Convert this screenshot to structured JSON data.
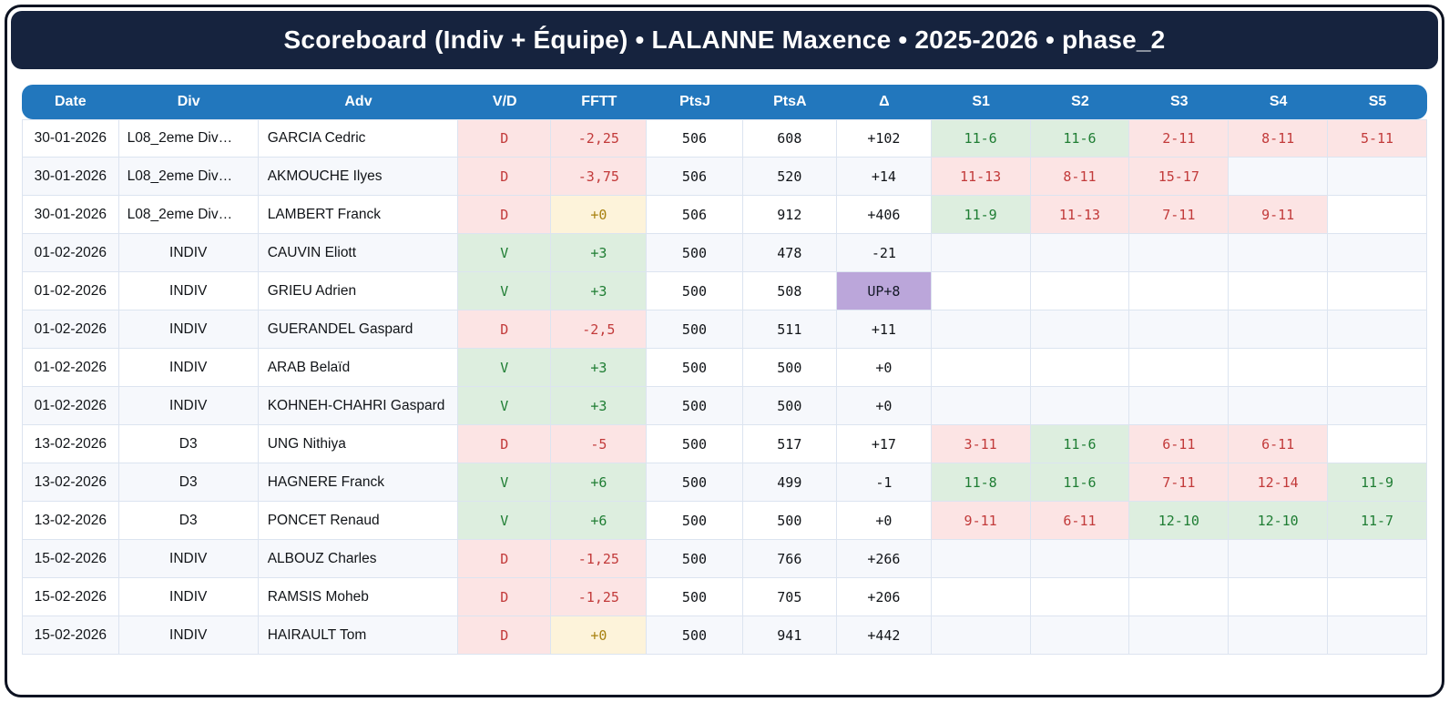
{
  "title": "Scoreboard (Indiv + Équipe) • LALANNE Maxence • 2025-2026 • phase_2",
  "colors": {
    "frame_border": "#0d1322",
    "banner_bg": "#16233e",
    "header_bg": "#2277bd",
    "win_bg": "#ddeedf",
    "win_text": "#1e7d33",
    "loss_bg": "#fce4e4",
    "loss_text": "#c23a3a",
    "zero_bg": "#fdf3da",
    "zero_text": "#a8810f",
    "up_bg": "#bba6da",
    "alt_row_bg": "#f6f8fc",
    "grid_line": "#dce4f0"
  },
  "table": {
    "columns": [
      "Date",
      "Div",
      "Adv",
      "V/D",
      "FFTT",
      "PtsJ",
      "PtsA",
      "Δ",
      "S1",
      "S2",
      "S3",
      "S4",
      "S5"
    ],
    "rows": [
      {
        "date": "30-01-2026",
        "div": "L08_2eme Div…",
        "adv": "GARCIA Cedric",
        "vd": "D",
        "fftt": "-2,25",
        "fftt_kind": "loss",
        "ptsj": "506",
        "ptsa": "608",
        "delta": "+102",
        "delta_kind": "plain",
        "sets": [
          {
            "t": "11-6",
            "k": "w"
          },
          {
            "t": "11-6",
            "k": "w"
          },
          {
            "t": "2-11",
            "k": "l"
          },
          {
            "t": "8-11",
            "k": "l"
          },
          {
            "t": "5-11",
            "k": "l"
          }
        ]
      },
      {
        "date": "30-01-2026",
        "div": "L08_2eme Div…",
        "adv": "AKMOUCHE Ilyes",
        "vd": "D",
        "fftt": "-3,75",
        "fftt_kind": "loss",
        "ptsj": "506",
        "ptsa": "520",
        "delta": "+14",
        "delta_kind": "plain",
        "sets": [
          {
            "t": "11-13",
            "k": "l"
          },
          {
            "t": "8-11",
            "k": "l"
          },
          {
            "t": "15-17",
            "k": "l"
          },
          {
            "t": "",
            "k": ""
          },
          {
            "t": "",
            "k": ""
          }
        ]
      },
      {
        "date": "30-01-2026",
        "div": "L08_2eme Div…",
        "adv": "LAMBERT Franck",
        "vd": "D",
        "fftt": "+0",
        "fftt_kind": "zero",
        "ptsj": "506",
        "ptsa": "912",
        "delta": "+406",
        "delta_kind": "plain",
        "sets": [
          {
            "t": "11-9",
            "k": "w"
          },
          {
            "t": "11-13",
            "k": "l"
          },
          {
            "t": "7-11",
            "k": "l"
          },
          {
            "t": "9-11",
            "k": "l"
          },
          {
            "t": "",
            "k": ""
          }
        ]
      },
      {
        "date": "01-02-2026",
        "div": "INDIV",
        "adv": "CAUVIN Eliott",
        "vd": "V",
        "fftt": "+3",
        "fftt_kind": "win",
        "ptsj": "500",
        "ptsa": "478",
        "delta": "-21",
        "delta_kind": "plain",
        "sets": [
          {
            "t": "",
            "k": ""
          },
          {
            "t": "",
            "k": ""
          },
          {
            "t": "",
            "k": ""
          },
          {
            "t": "",
            "k": ""
          },
          {
            "t": "",
            "k": ""
          }
        ]
      },
      {
        "date": "01-02-2026",
        "div": "INDIV",
        "adv": "GRIEU Adrien",
        "vd": "V",
        "fftt": "+3",
        "fftt_kind": "win",
        "ptsj": "500",
        "ptsa": "508",
        "delta": "UP+8",
        "delta_kind": "up",
        "sets": [
          {
            "t": "",
            "k": ""
          },
          {
            "t": "",
            "k": ""
          },
          {
            "t": "",
            "k": ""
          },
          {
            "t": "",
            "k": ""
          },
          {
            "t": "",
            "k": ""
          }
        ]
      },
      {
        "date": "01-02-2026",
        "div": "INDIV",
        "adv": "GUERANDEL Gaspard",
        "vd": "D",
        "fftt": "-2,5",
        "fftt_kind": "loss",
        "ptsj": "500",
        "ptsa": "511",
        "delta": "+11",
        "delta_kind": "plain",
        "sets": [
          {
            "t": "",
            "k": ""
          },
          {
            "t": "",
            "k": ""
          },
          {
            "t": "",
            "k": ""
          },
          {
            "t": "",
            "k": ""
          },
          {
            "t": "",
            "k": ""
          }
        ]
      },
      {
        "date": "01-02-2026",
        "div": "INDIV",
        "adv": "ARAB Belaïd",
        "vd": "V",
        "fftt": "+3",
        "fftt_kind": "win",
        "ptsj": "500",
        "ptsa": "500",
        "delta": "+0",
        "delta_kind": "plain",
        "sets": [
          {
            "t": "",
            "k": ""
          },
          {
            "t": "",
            "k": ""
          },
          {
            "t": "",
            "k": ""
          },
          {
            "t": "",
            "k": ""
          },
          {
            "t": "",
            "k": ""
          }
        ]
      },
      {
        "date": "01-02-2026",
        "div": "INDIV",
        "adv": "KOHNEH-CHAHRI Gaspard",
        "vd": "V",
        "fftt": "+3",
        "fftt_kind": "win",
        "ptsj": "500",
        "ptsa": "500",
        "delta": "+0",
        "delta_kind": "plain",
        "sets": [
          {
            "t": "",
            "k": ""
          },
          {
            "t": "",
            "k": ""
          },
          {
            "t": "",
            "k": ""
          },
          {
            "t": "",
            "k": ""
          },
          {
            "t": "",
            "k": ""
          }
        ]
      },
      {
        "date": "13-02-2026",
        "div": "D3",
        "adv": "UNG Nithiya",
        "vd": "D",
        "fftt": "-5",
        "fftt_kind": "loss",
        "ptsj": "500",
        "ptsa": "517",
        "delta": "+17",
        "delta_kind": "plain",
        "sets": [
          {
            "t": "3-11",
            "k": "l"
          },
          {
            "t": "11-6",
            "k": "w"
          },
          {
            "t": "6-11",
            "k": "l"
          },
          {
            "t": "6-11",
            "k": "l"
          },
          {
            "t": "",
            "k": ""
          }
        ]
      },
      {
        "date": "13-02-2026",
        "div": "D3",
        "adv": "HAGNERE Franck",
        "vd": "V",
        "fftt": "+6",
        "fftt_kind": "win",
        "ptsj": "500",
        "ptsa": "499",
        "delta": "-1",
        "delta_kind": "plain",
        "sets": [
          {
            "t": "11-8",
            "k": "w"
          },
          {
            "t": "11-6",
            "k": "w"
          },
          {
            "t": "7-11",
            "k": "l"
          },
          {
            "t": "12-14",
            "k": "l"
          },
          {
            "t": "11-9",
            "k": "w"
          }
        ]
      },
      {
        "date": "13-02-2026",
        "div": "D3",
        "adv": "PONCET Renaud",
        "vd": "V",
        "fftt": "+6",
        "fftt_kind": "win",
        "ptsj": "500",
        "ptsa": "500",
        "delta": "+0",
        "delta_kind": "plain",
        "sets": [
          {
            "t": "9-11",
            "k": "l"
          },
          {
            "t": "6-11",
            "k": "l"
          },
          {
            "t": "12-10",
            "k": "w"
          },
          {
            "t": "12-10",
            "k": "w"
          },
          {
            "t": "11-7",
            "k": "w"
          }
        ]
      },
      {
        "date": "15-02-2026",
        "div": "INDIV",
        "adv": "ALBOUZ Charles",
        "vd": "D",
        "fftt": "-1,25",
        "fftt_kind": "loss",
        "ptsj": "500",
        "ptsa": "766",
        "delta": "+266",
        "delta_kind": "plain",
        "sets": [
          {
            "t": "",
            "k": ""
          },
          {
            "t": "",
            "k": ""
          },
          {
            "t": "",
            "k": ""
          },
          {
            "t": "",
            "k": ""
          },
          {
            "t": "",
            "k": ""
          }
        ]
      },
      {
        "date": "15-02-2026",
        "div": "INDIV",
        "adv": "RAMSIS Moheb",
        "vd": "D",
        "fftt": "-1,25",
        "fftt_kind": "loss",
        "ptsj": "500",
        "ptsa": "705",
        "delta": "+206",
        "delta_kind": "plain",
        "sets": [
          {
            "t": "",
            "k": ""
          },
          {
            "t": "",
            "k": ""
          },
          {
            "t": "",
            "k": ""
          },
          {
            "t": "",
            "k": ""
          },
          {
            "t": "",
            "k": ""
          }
        ]
      },
      {
        "date": "15-02-2026",
        "div": "INDIV",
        "adv": "HAIRAULT Tom",
        "vd": "D",
        "fftt": "+0",
        "fftt_kind": "zero",
        "ptsj": "500",
        "ptsa": "941",
        "delta": "+442",
        "delta_kind": "plain",
        "sets": [
          {
            "t": "",
            "k": ""
          },
          {
            "t": "",
            "k": ""
          },
          {
            "t": "",
            "k": ""
          },
          {
            "t": "",
            "k": ""
          },
          {
            "t": "",
            "k": ""
          }
        ]
      }
    ]
  }
}
